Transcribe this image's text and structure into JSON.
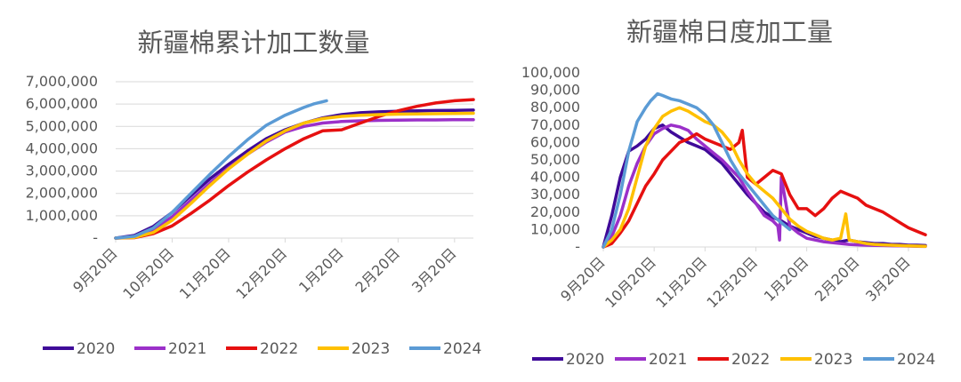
{
  "colors": {
    "2020": "#3f0a99",
    "2021": "#9b30c9",
    "2022": "#e61010",
    "2023": "#ffc000",
    "2024": "#5b9bd5"
  },
  "chart_data": [
    {
      "type": "line",
      "title": "新疆棉累计加工数量",
      "xlabel": "",
      "ylabel": "",
      "ylim": [
        0,
        7000000
      ],
      "ytick_labels": [
        "-",
        "1,000,000",
        "2,000,000",
        "3,000,000",
        "4,000,000",
        "5,000,000",
        "6,000,000",
        "7,000,000"
      ],
      "xtick_labels": [
        "9月20日",
        "10月20日",
        "11月20日",
        "12月20日",
        "1月20日",
        "2月20日",
        "3月20日"
      ],
      "x_unit": "days since Sep 20",
      "xlim": [
        0,
        190
      ],
      "grid": true,
      "legend_position": "bottom",
      "series": [
        {
          "name": "2020",
          "x": [
            0,
            10,
            20,
            30,
            40,
            50,
            60,
            70,
            80,
            90,
            100,
            110,
            120,
            130,
            140,
            150,
            160,
            170,
            180,
            190
          ],
          "values": [
            0,
            120000,
            520000,
            1150000,
            1900000,
            2650000,
            3300000,
            3900000,
            4450000,
            4850000,
            5150000,
            5380000,
            5530000,
            5610000,
            5650000,
            5680000,
            5700000,
            5710000,
            5720000,
            5730000
          ]
        },
        {
          "name": "2021",
          "x": [
            0,
            10,
            20,
            30,
            40,
            50,
            60,
            70,
            80,
            90,
            100,
            110,
            120,
            130,
            140,
            150,
            160,
            170,
            180,
            190
          ],
          "values": [
            0,
            50000,
            350000,
            950000,
            1700000,
            2450000,
            3150000,
            3750000,
            4300000,
            4750000,
            5000000,
            5150000,
            5220000,
            5250000,
            5270000,
            5280000,
            5290000,
            5290000,
            5300000,
            5300000
          ]
        },
        {
          "name": "2022",
          "x": [
            0,
            10,
            20,
            30,
            40,
            50,
            60,
            70,
            80,
            90,
            100,
            110,
            120,
            130,
            140,
            150,
            160,
            170,
            180,
            190
          ],
          "values": [
            0,
            20000,
            200000,
            550000,
            1100000,
            1700000,
            2350000,
            2950000,
            3500000,
            4000000,
            4450000,
            4800000,
            4850000,
            5150000,
            5450000,
            5700000,
            5900000,
            6050000,
            6150000,
            6200000
          ]
        },
        {
          "name": "2023",
          "x": [
            0,
            10,
            20,
            30,
            40,
            50,
            60,
            70,
            80,
            90,
            100,
            110,
            120,
            130,
            140,
            150,
            160,
            170,
            180,
            190
          ],
          "values": [
            0,
            30000,
            250000,
            800000,
            1550000,
            2350000,
            3100000,
            3750000,
            4350000,
            4800000,
            5150000,
            5350000,
            5450000,
            5500000,
            5530000,
            5550000,
            5560000,
            5570000,
            5580000,
            5590000
          ]
        },
        {
          "name": "2024",
          "x": [
            0,
            10,
            20,
            30,
            40,
            50,
            60,
            70,
            80,
            90,
            100,
            105,
            112
          ],
          "values": [
            0,
            80000,
            450000,
            1150000,
            2000000,
            2850000,
            3650000,
            4400000,
            5050000,
            5500000,
            5850000,
            6000000,
            6150000
          ]
        }
      ]
    },
    {
      "type": "line",
      "title": "新疆棉日度加工量",
      "xlabel": "",
      "ylabel": "",
      "ylim": [
        0,
        100000
      ],
      "ytick_labels": [
        "-",
        "10,000",
        "20,000",
        "30,000",
        "40,000",
        "50,000",
        "60,000",
        "70,000",
        "80,000",
        "90,000",
        "100,000"
      ],
      "xtick_labels": [
        "9月20日",
        "10月20日",
        "11月20日",
        "12月20日",
        "1月20日",
        "2月20日",
        "3月20日"
      ],
      "x_unit": "days since Sep 20",
      "xlim": [
        0,
        190
      ],
      "grid": false,
      "legend_position": "bottom",
      "series": [
        {
          "name": "2020",
          "x": [
            0,
            5,
            10,
            15,
            20,
            25,
            30,
            35,
            40,
            45,
            50,
            55,
            60,
            65,
            70,
            75,
            80,
            85,
            90,
            95,
            100,
            105,
            110,
            115,
            120,
            125,
            130,
            135,
            140,
            145,
            150,
            155,
            160,
            165,
            170,
            175,
            180,
            185,
            190
          ],
          "values": [
            0,
            18000,
            40000,
            55000,
            58000,
            62000,
            68000,
            70000,
            66000,
            63000,
            60000,
            58000,
            56000,
            52000,
            48000,
            42000,
            36000,
            30000,
            25000,
            20000,
            17000,
            15000,
            12000,
            10000,
            8000,
            6000,
            5000,
            4000,
            3000,
            4000,
            3000,
            2500,
            2000,
            2000,
            1500,
            1500,
            1000,
            1000,
            800
          ]
        },
        {
          "name": "2021",
          "x": [
            0,
            5,
            10,
            15,
            20,
            25,
            30,
            35,
            40,
            45,
            50,
            55,
            60,
            65,
            70,
            75,
            80,
            85,
            90,
            95,
            100,
            103,
            104,
            105,
            110,
            115,
            120,
            125,
            130,
            135,
            140,
            145,
            150,
            155,
            160,
            165,
            170,
            175,
            180,
            185,
            190
          ],
          "values": [
            0,
            6000,
            18000,
            35000,
            48000,
            58000,
            65000,
            68000,
            70000,
            69000,
            67000,
            62000,
            58000,
            54000,
            50000,
            45000,
            40000,
            32000,
            25000,
            18000,
            15000,
            12000,
            4000,
            40000,
            12000,
            8000,
            5000,
            4000,
            3000,
            2500,
            2000,
            1500,
            1200,
            1000,
            900,
            800,
            700,
            600,
            500,
            400,
            300
          ]
        },
        {
          "name": "2022",
          "x": [
            0,
            5,
            10,
            15,
            20,
            25,
            30,
            35,
            40,
            45,
            50,
            55,
            60,
            65,
            70,
            75,
            80,
            82,
            85,
            90,
            95,
            100,
            105,
            110,
            115,
            120,
            125,
            130,
            135,
            140,
            145,
            150,
            155,
            160,
            165,
            170,
            175,
            180,
            185,
            190
          ],
          "values": [
            0,
            2000,
            8000,
            15000,
            25000,
            35000,
            42000,
            50000,
            55000,
            60000,
            62000,
            65000,
            62000,
            60000,
            58000,
            56000,
            60000,
            67000,
            40000,
            36000,
            40000,
            44000,
            42000,
            30000,
            22000,
            22000,
            18000,
            22000,
            28000,
            32000,
            30000,
            28000,
            24000,
            22000,
            20000,
            17000,
            14000,
            11000,
            9000,
            7000
          ]
        },
        {
          "name": "2023",
          "x": [
            0,
            5,
            10,
            15,
            20,
            25,
            30,
            35,
            40,
            45,
            50,
            55,
            60,
            65,
            70,
            75,
            80,
            85,
            90,
            95,
            100,
            105,
            110,
            115,
            120,
            125,
            130,
            135,
            140,
            143,
            145,
            150,
            155,
            160,
            165,
            170,
            175,
            180,
            185,
            190
          ],
          "values": [
            0,
            4000,
            10000,
            22000,
            40000,
            58000,
            68000,
            75000,
            78000,
            80000,
            78000,
            75000,
            72000,
            70000,
            66000,
            60000,
            50000,
            42000,
            36000,
            32000,
            28000,
            22000,
            16000,
            12000,
            9000,
            7000,
            5000,
            4000,
            5000,
            19000,
            4000,
            3000,
            2000,
            1500,
            1200,
            1000,
            800,
            600,
            500,
            400
          ]
        },
        {
          "name": "2024",
          "x": [
            0,
            5,
            10,
            15,
            20,
            25,
            28,
            30,
            32,
            35,
            40,
            45,
            50,
            55,
            60,
            65,
            70,
            75,
            80,
            85,
            90,
            95,
            100,
            105,
            110
          ],
          "values": [
            0,
            10000,
            30000,
            55000,
            72000,
            80000,
            84000,
            86000,
            88000,
            87000,
            85000,
            84000,
            82000,
            80000,
            76000,
            70000,
            60000,
            50000,
            42000,
            36000,
            30000,
            24000,
            18000,
            14000,
            10000
          ]
        }
      ]
    }
  ]
}
